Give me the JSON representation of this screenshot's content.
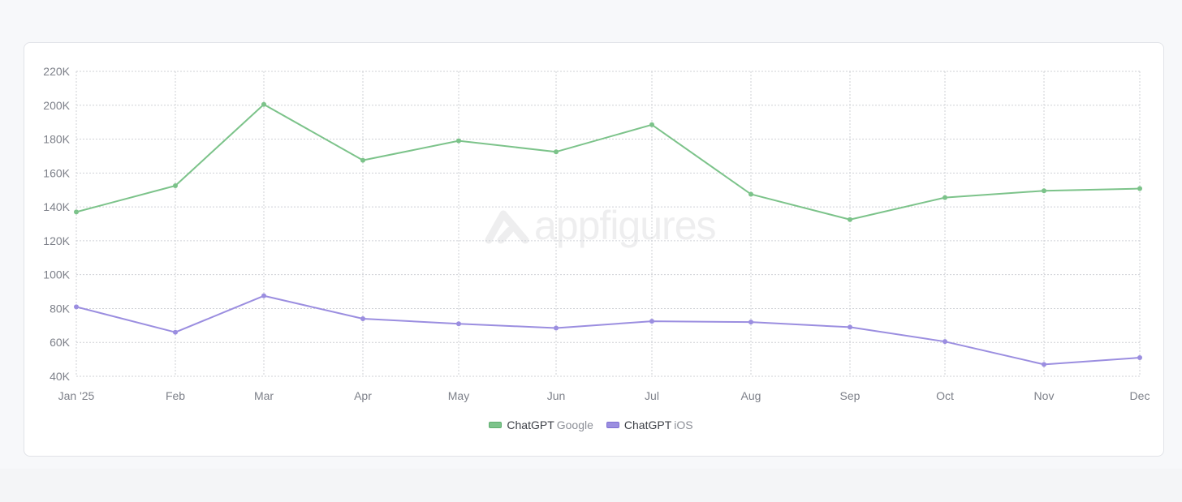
{
  "watermark": "appfigures",
  "chart_data": {
    "type": "line",
    "categories": [
      "Jan '25",
      "Feb",
      "Mar",
      "Apr",
      "May",
      "Jun",
      "Jul",
      "Aug",
      "Sep",
      "Oct",
      "Nov",
      "Dec"
    ],
    "y_ticks": [
      "40K",
      "60K",
      "80K",
      "100K",
      "120K",
      "140K",
      "160K",
      "180K",
      "200K",
      "220K"
    ],
    "ylim": [
      40000,
      220000
    ],
    "grid": true,
    "legend_position": "bottom-center",
    "series": [
      {
        "name": "ChatGPT Google",
        "app": "ChatGPT",
        "platform": "Google",
        "color": "#7cc38a",
        "values": [
          137000,
          152500,
          200500,
          167500,
          179000,
          172500,
          188500,
          147500,
          132500,
          145500,
          149500,
          150800
        ]
      },
      {
        "name": "ChatGPT iOS",
        "app": "ChatGPT",
        "platform": "iOS",
        "color": "#9b8ee0",
        "values": [
          81000,
          66000,
          87500,
          74000,
          71000,
          68500,
          72500,
          72000,
          69000,
          60500,
          47000,
          51000
        ]
      }
    ]
  }
}
